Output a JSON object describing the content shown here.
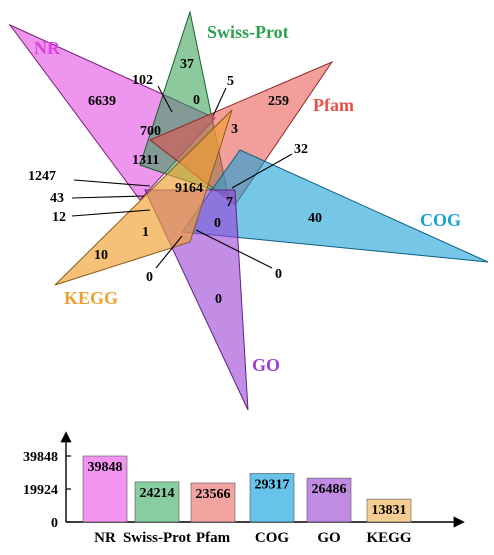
{
  "chart_data": [
    {
      "type": "venn",
      "sets": [
        {
          "name": "NR",
          "color": "#e040e0"
        },
        {
          "name": "Swiss-Prot",
          "color": "#2e9e4f"
        },
        {
          "name": "Pfam",
          "color": "#e8504a"
        },
        {
          "name": "COG",
          "color": "#1aa0d8"
        },
        {
          "name": "GO",
          "color": "#9b3fd4"
        },
        {
          "name": "KEGG",
          "color": "#f0a030"
        }
      ],
      "region_labels": [
        "6639",
        "102",
        "37",
        "5",
        "0",
        "259",
        "3",
        "700",
        "1311",
        "32",
        "9164",
        "7",
        "40",
        "0",
        "1247",
        "43",
        "12",
        "1",
        "10",
        "0",
        "0",
        "0"
      ]
    },
    {
      "type": "bar",
      "categories": [
        "NR",
        "Swiss-Prot",
        "Pfam",
        "COG",
        "GO",
        "KEGG"
      ],
      "values": [
        39848,
        24214,
        23566,
        29317,
        26486,
        13831
      ],
      "value_labels": [
        "39848",
        "24214",
        "23566",
        "29317",
        "26486",
        "13831"
      ],
      "colors": [
        "#f08af0",
        "#7ac896",
        "#f29a96",
        "#55bde8",
        "#b97ee0",
        "#f4c886"
      ],
      "y_ticks": [
        "39848",
        "19924",
        "0"
      ],
      "ylim": [
        0,
        39848
      ]
    }
  ]
}
